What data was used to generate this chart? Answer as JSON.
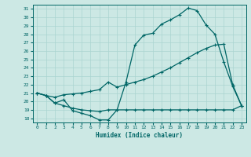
{
  "xlabel": "Humidex (Indice chaleur)",
  "bg_color": "#cce8e4",
  "line_color": "#006666",
  "grid_color": "#aad4d0",
  "xlim": [
    -0.5,
    23.5
  ],
  "ylim": [
    17.5,
    31.5
  ],
  "xticks": [
    0,
    1,
    2,
    3,
    4,
    5,
    6,
    7,
    8,
    9,
    10,
    11,
    12,
    13,
    14,
    15,
    16,
    17,
    18,
    19,
    20,
    21,
    22,
    23
  ],
  "yticks": [
    18,
    19,
    20,
    21,
    22,
    23,
    24,
    25,
    26,
    27,
    28,
    29,
    30,
    31
  ],
  "curve1_x": [
    0,
    1,
    2,
    3,
    4,
    5,
    6,
    7,
    8,
    9,
    10,
    11,
    12,
    13,
    14,
    15,
    16,
    17,
    18,
    19,
    20,
    21,
    22,
    23
  ],
  "curve1_y": [
    21,
    20.7,
    19.8,
    20.2,
    18.9,
    18.6,
    18.3,
    17.8,
    17.8,
    19.0,
    22.3,
    26.7,
    27.9,
    28.1,
    29.2,
    29.7,
    30.3,
    31.1,
    30.8,
    29.1,
    28.0,
    24.7,
    21.8,
    19.5
  ],
  "curve2_x": [
    0,
    1,
    2,
    3,
    4,
    5,
    6,
    7,
    8,
    9,
    10,
    11,
    12,
    13,
    14,
    15,
    16,
    17,
    18,
    19,
    20,
    21,
    22,
    23
  ],
  "curve2_y": [
    21,
    20.7,
    20.5,
    20.8,
    20.9,
    21.0,
    21.2,
    21.4,
    22.3,
    21.7,
    22.0,
    22.3,
    22.6,
    23.0,
    23.5,
    24.0,
    24.6,
    25.2,
    25.8,
    26.3,
    26.7,
    26.8,
    22.0,
    19.5
  ],
  "curve3_x": [
    0,
    1,
    2,
    3,
    4,
    5,
    6,
    7,
    8,
    9,
    10,
    11,
    12,
    13,
    14,
    15,
    16,
    17,
    18,
    19,
    20,
    21,
    22,
    23
  ],
  "curve3_y": [
    21,
    20.7,
    19.8,
    19.5,
    19.2,
    19.0,
    18.9,
    18.8,
    19.0,
    19.0,
    19.0,
    19.0,
    19.0,
    19.0,
    19.0,
    19.0,
    19.0,
    19.0,
    19.0,
    19.0,
    19.0,
    19.0,
    19.0,
    19.5
  ]
}
